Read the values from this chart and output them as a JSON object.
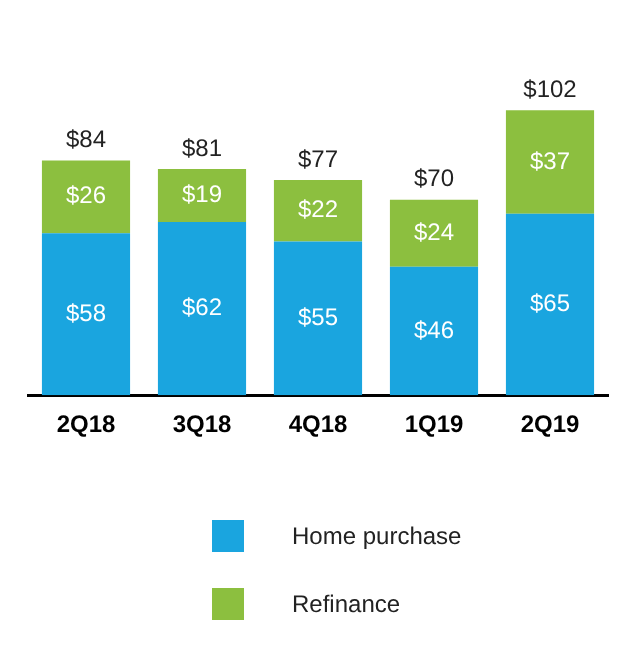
{
  "chart_data": {
    "type": "bar",
    "stacked": true,
    "categories": [
      "2Q18",
      "3Q18",
      "4Q18",
      "1Q19",
      "2Q19"
    ],
    "series": [
      {
        "name": "Home purchase",
        "color": "#1aa5df",
        "values": [
          58,
          62,
          55,
          46,
          65
        ],
        "value_labels": [
          "$58",
          "$62",
          "$55",
          "$46",
          "$65"
        ]
      },
      {
        "name": "Refinance",
        "color": "#8cbf3f",
        "values": [
          26,
          19,
          22,
          24,
          37
        ],
        "value_labels": [
          "$26",
          "$19",
          "$22",
          "$24",
          "$37"
        ]
      }
    ],
    "totals": [
      "$84",
      "$81",
      "$77",
      "$70",
      "$102"
    ],
    "legend": "bottom",
    "grid": false
  }
}
